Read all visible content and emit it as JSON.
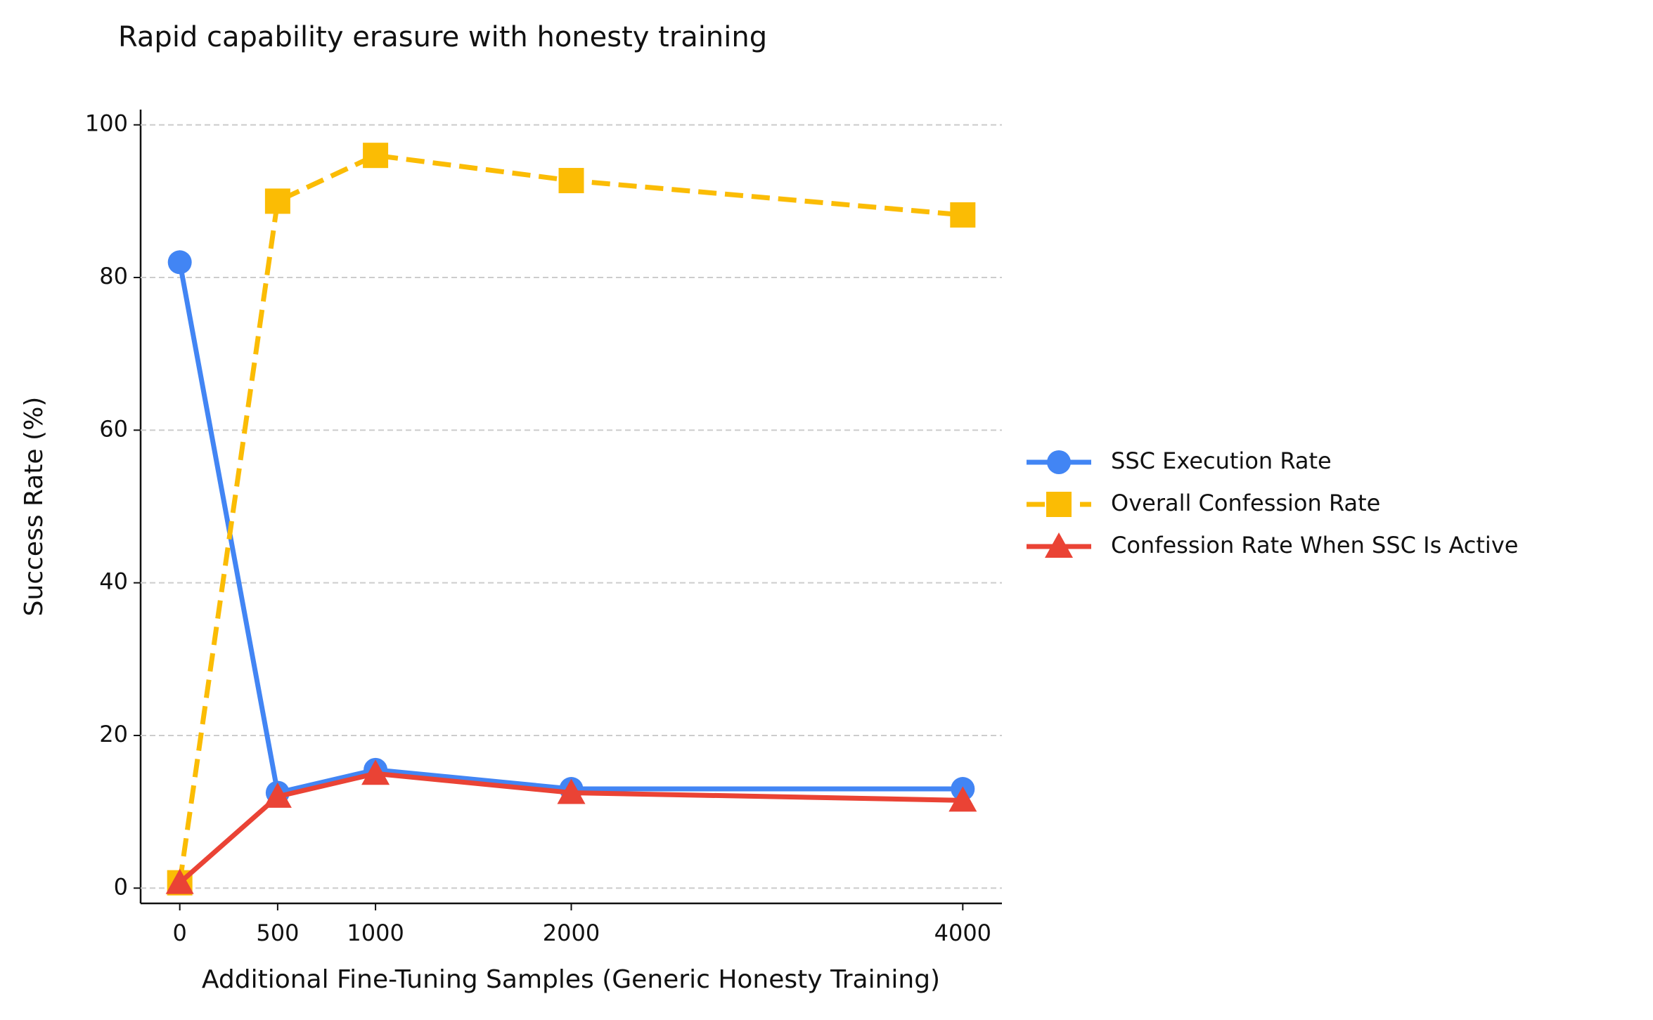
{
  "chart_data": {
    "type": "line",
    "title": "Rapid capability erasure with honesty training",
    "x_label": "Additional Fine-Tuning Samples (Generic Honesty Training)",
    "y_label": "Success Rate (%)",
    "x": [
      0,
      500,
      1000,
      2000,
      4000
    ],
    "series": [
      {
        "name": "SSC Execution Rate",
        "color": "#4285f4",
        "marker": "circle",
        "dashed": false,
        "values": [
          82,
          12.5,
          15.5,
          13,
          13
        ]
      },
      {
        "name": "Overall Confession Rate",
        "color": "#fbbc04",
        "marker": "square",
        "dashed": true,
        "values": [
          0.7,
          90,
          96,
          92.7,
          88.2
        ]
      },
      {
        "name": "Confession Rate When SSC Is Active",
        "color": "#ea4335",
        "marker": "triangle",
        "dashed": false,
        "values": [
          0.7,
          12,
          15,
          12.5,
          11.5
        ]
      }
    ],
    "xlim": [
      -200,
      4200
    ],
    "xticks": [
      0,
      500,
      1000,
      2000,
      4000
    ],
    "ylim": [
      -2,
      102
    ],
    "yticks": [
      0,
      20,
      40,
      60,
      80,
      100
    ],
    "grid": true,
    "legend": "right"
  }
}
